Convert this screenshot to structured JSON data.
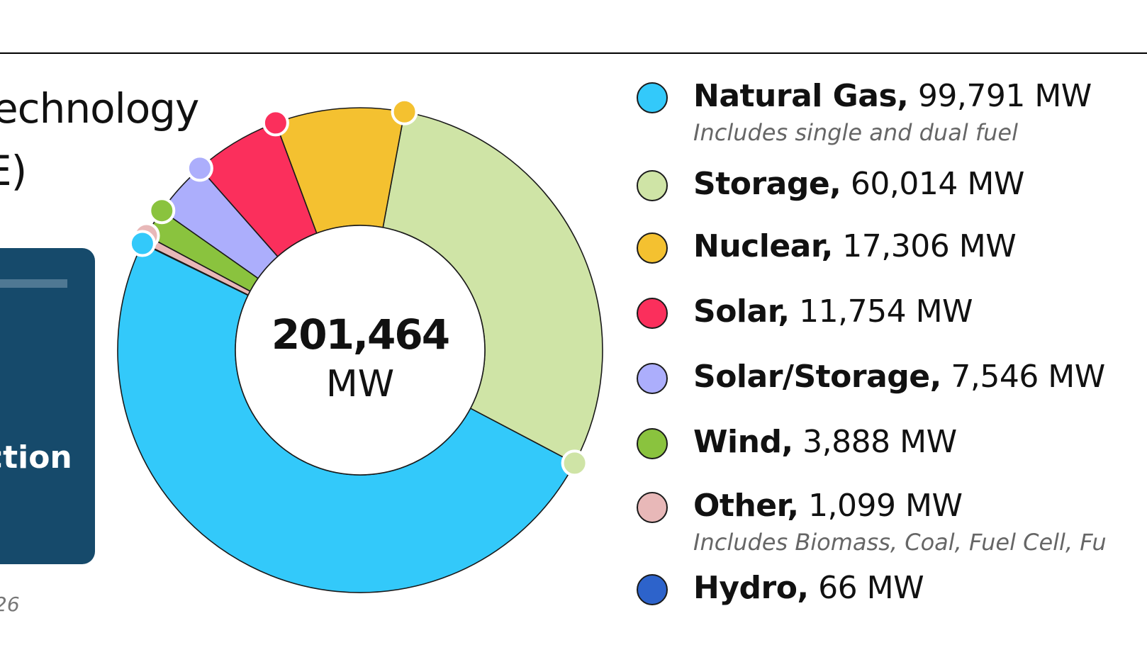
{
  "header": {
    "title_fragment_1": "echnology",
    "title_fragment_2": "E)"
  },
  "side_card": {
    "text_fragment": "ction"
  },
  "footnote": {
    "text_fragment": "26"
  },
  "colors": {
    "natural_gas": "#33c9fa",
    "storage": "#cfe4a6",
    "nuclear": "#f4c130",
    "solar": "#fb2f5c",
    "solar_storage": "#acaefc",
    "wind": "#8ac33e",
    "other": "#e8b8b8",
    "hydro": "#2d63cb",
    "card": "#164a6b"
  },
  "chart_data": {
    "type": "pie",
    "total_label": "201,464",
    "total_unit": "MW",
    "categories": [
      "Natural Gas",
      "Storage",
      "Nuclear",
      "Solar",
      "Solar/Storage",
      "Wind",
      "Other",
      "Hydro"
    ],
    "values": [
      99791,
      60014,
      17306,
      11754,
      7546,
      3888,
      1099,
      66
    ],
    "unit": "MW",
    "legend_position": "right",
    "legend": [
      {
        "name": "Natural Gas,",
        "value_label": "99,791 MW",
        "note": "Includes single and dual fuel",
        "color": "#33c9fa"
      },
      {
        "name": "Storage,",
        "value_label": "60,014 MW",
        "note": "",
        "color": "#cfe4a6"
      },
      {
        "name": "Nuclear,",
        "value_label": "17,306 MW",
        "note": "",
        "color": "#f4c130"
      },
      {
        "name": "Solar,",
        "value_label": "11,754 MW",
        "note": "",
        "color": "#fb2f5c"
      },
      {
        "name": "Solar/Storage,",
        "value_label": "7,546 MW",
        "note": "",
        "color": "#acaefc"
      },
      {
        "name": "Wind,",
        "value_label": "3,888 MW",
        "note": "",
        "color": "#8ac33e"
      },
      {
        "name": "Other,",
        "value_label": "1,099 MW",
        "note": "Includes Biomass, Coal, Fuel Cell, Fu",
        "color": "#e8b8b8"
      },
      {
        "name": "Hydro,",
        "value_label": "66 MW",
        "note": "",
        "color": "#2d63cb"
      }
    ]
  }
}
